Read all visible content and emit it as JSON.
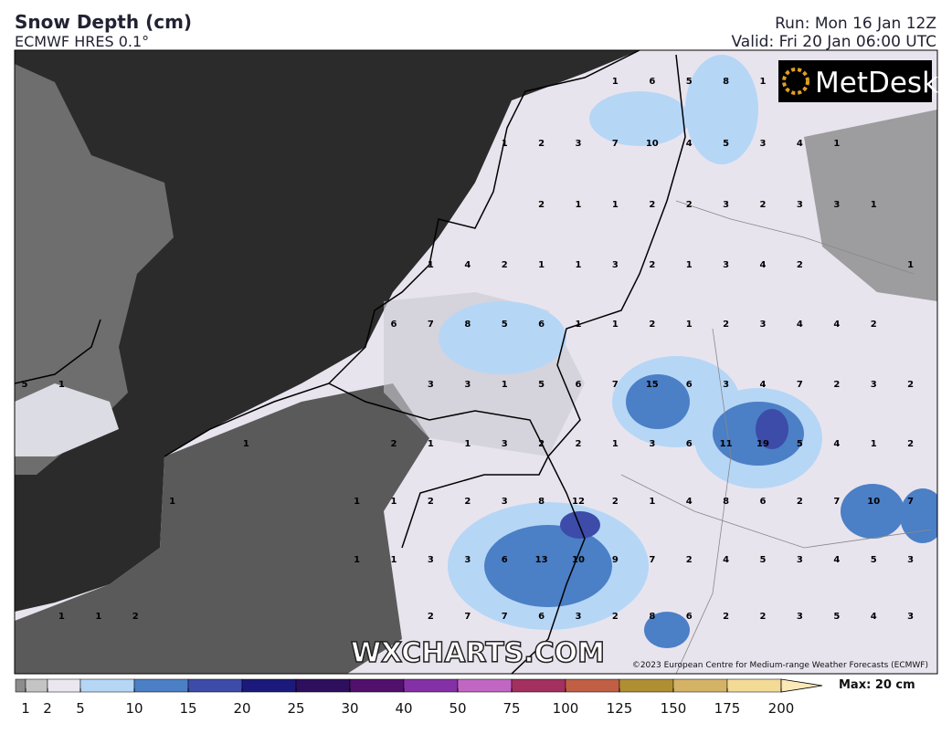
{
  "header": {
    "title": "Snow Depth (cm)",
    "subtitle": "ECMWF HRES 0.1°",
    "run": "Run: Mon 16 Jan 12Z",
    "valid": "Valid: Fri 20 Jan 06:00 UTC"
  },
  "logo": "MetDesk",
  "watermark": "WXCHARTS.COM",
  "copyright": "©2023 European Centre for Medium-range Weather Forecasts (ECMWF)",
  "grid_labels": [
    [
      null,
      null,
      null,
      null,
      null,
      null,
      null,
      null,
      null,
      null,
      null,
      null,
      null,
      null,
      null,
      null,
      1,
      6,
      5,
      8,
      1,
      null,
      null,
      null,
      null
    ],
    [
      null,
      null,
      null,
      null,
      null,
      null,
      null,
      null,
      null,
      null,
      null,
      null,
      null,
      1,
      2,
      3,
      7,
      10,
      4,
      5,
      3,
      4,
      1,
      null,
      null
    ],
    [
      null,
      null,
      null,
      null,
      null,
      null,
      null,
      null,
      null,
      null,
      null,
      null,
      null,
      null,
      2,
      1,
      1,
      2,
      2,
      3,
      2,
      3,
      3,
      1,
      null
    ],
    [
      null,
      null,
      null,
      null,
      null,
      null,
      null,
      null,
      null,
      null,
      null,
      1,
      4,
      2,
      1,
      1,
      3,
      2,
      1,
      3,
      4,
      2,
      null,
      null,
      1
    ],
    [
      null,
      null,
      null,
      null,
      null,
      null,
      null,
      null,
      null,
      null,
      6,
      7,
      8,
      5,
      6,
      1,
      1,
      2,
      1,
      2,
      3,
      4,
      4,
      2,
      null
    ],
    [
      5,
      1,
      null,
      null,
      null,
      null,
      null,
      null,
      null,
      null,
      null,
      3,
      3,
      1,
      5,
      6,
      7,
      15,
      6,
      3,
      4,
      7,
      2,
      3,
      2
    ],
    [
      null,
      null,
      null,
      null,
      null,
      null,
      1,
      null,
      null,
      null,
      2,
      1,
      1,
      3,
      2,
      2,
      1,
      3,
      6,
      11,
      19,
      5,
      4,
      1,
      2
    ],
    [
      null,
      null,
      null,
      null,
      1,
      null,
      null,
      null,
      null,
      1,
      1,
      2,
      2,
      3,
      8,
      12,
      2,
      1,
      4,
      8,
      6,
      2,
      7,
      10,
      7
    ],
    [
      null,
      null,
      null,
      null,
      null,
      null,
      null,
      null,
      null,
      1,
      1,
      3,
      3,
      6,
      13,
      10,
      9,
      7,
      2,
      4,
      5,
      3,
      4,
      5,
      3
    ],
    [
      null,
      1,
      1,
      2,
      null,
      null,
      null,
      null,
      null,
      null,
      null,
      2,
      7,
      7,
      6,
      3,
      2,
      8,
      6,
      2,
      2,
      3,
      5,
      4,
      3
    ]
  ],
  "colorbar": {
    "ticks": [
      1,
      2,
      5,
      10,
      15,
      20,
      25,
      30,
      40,
      50,
      75,
      100,
      125,
      150,
      175,
      200
    ],
    "colors": [
      "#8c8c8c",
      "#c4c4c4",
      "#ebe7f0",
      "#b6d6f6",
      "#4b7fc6",
      "#3d4ba9",
      "#1b1a7c",
      "#2e0f5e",
      "#51106c",
      "#8430a6",
      "#c266c4",
      "#a3305f",
      "#c15f45",
      "#b08f33",
      "#d4b266",
      "#f3da95",
      "#fbe9b8"
    ],
    "max_label": "Max: 20 cm"
  }
}
